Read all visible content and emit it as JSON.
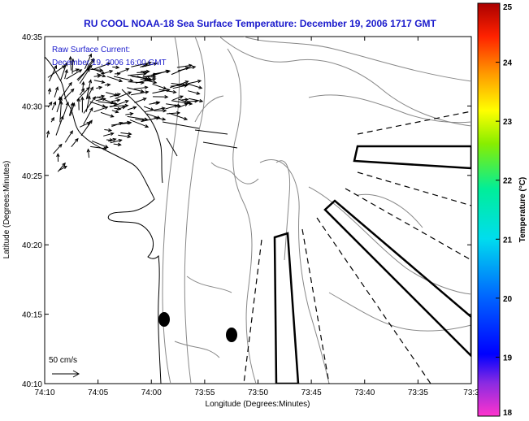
{
  "title": "RU COOL  NOAA-18  Sea Surface Temperature:  December 19, 2006 1717 GMT",
  "subtitle_line1": "Raw Surface Current:",
  "subtitle_line2": "December 19, 2006 16:00 GMT",
  "scale_label": "50 cm/s",
  "xlabel": "Longitude (Degrees:Minutes)",
  "ylabel": "Latitude (Degrees:Minutes)",
  "x_ticks": [
    "74:10",
    "74:05",
    "74:00",
    "73:55",
    "73:50",
    "73:45",
    "73:40",
    "73:35",
    "73:3"
  ],
  "y_ticks": [
    "40:35",
    "40:30",
    "40:25",
    "40:20",
    "40:15",
    "40:10"
  ],
  "colorbar": {
    "label": "Temperature (°C)",
    "ticks": [
      "25",
      "24",
      "23",
      "22",
      "21",
      "20",
      "19",
      "18"
    ],
    "range": [
      18,
      25
    ]
  },
  "colors": {
    "title": "#1a1acc",
    "contour": "#888888",
    "vectors": "#000000"
  }
}
